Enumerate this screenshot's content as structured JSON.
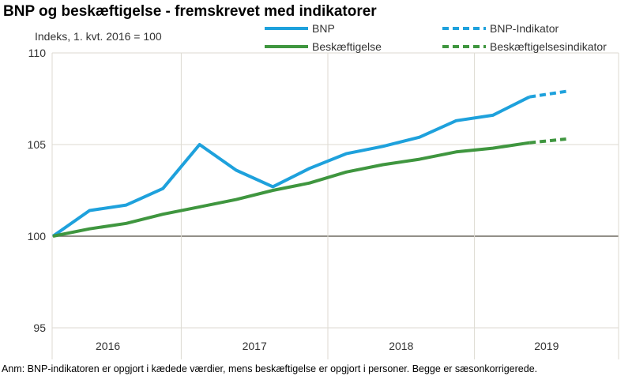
{
  "chart_data": {
    "type": "line",
    "title": "BNP og beskæftigelse - fremskrevet med indikatorer",
    "ylabel": "Indeks, 1. kvt. 2016  = 100",
    "ylim": [
      95,
      110
    ],
    "yticks": [
      "95",
      "100",
      "105",
      "110"
    ],
    "xticks": [
      "2016",
      "2017",
      "2018",
      "2019"
    ],
    "x": [
      "2016K1",
      "2016K2",
      "2016K3",
      "2016K4",
      "2017K1",
      "2017K2",
      "2017K3",
      "2017K4",
      "2018K1",
      "2018K2",
      "2018K3",
      "2018K4",
      "2019K1",
      "2019K2",
      "2019K3"
    ],
    "grid": true,
    "legend_position": "top",
    "series": [
      {
        "name": "BNP",
        "color": "#1ea1dc",
        "style": "solid",
        "values": [
          100,
          101.4,
          101.7,
          102.6,
          105.0,
          103.6,
          102.7,
          103.7,
          104.5,
          104.9,
          105.4,
          106.3,
          106.6,
          107.6,
          null
        ]
      },
      {
        "name": "Beskæftigelse",
        "color": "#3f963f",
        "style": "solid",
        "values": [
          100,
          100.4,
          100.7,
          101.2,
          101.6,
          102.0,
          102.5,
          102.9,
          103.5,
          103.9,
          104.2,
          104.6,
          104.8,
          105.1,
          null
        ]
      },
      {
        "name": "BNP-Indikator",
        "color": "#1ea1dc",
        "style": "dashed",
        "values": [
          null,
          null,
          null,
          null,
          null,
          null,
          null,
          null,
          null,
          null,
          null,
          null,
          null,
          107.6,
          107.9
        ]
      },
      {
        "name": "Beskæftigelsesindikator",
        "color": "#3f963f",
        "style": "dashed",
        "values": [
          null,
          null,
          null,
          null,
          null,
          null,
          null,
          null,
          null,
          null,
          null,
          null,
          null,
          105.1,
          105.3
        ]
      }
    ],
    "note": "Anm: BNP-indikatoren er opgjort i kædede værdier, mens beskæftigelse er opgjort i personer. Begge er sæsonkorrigerede."
  }
}
